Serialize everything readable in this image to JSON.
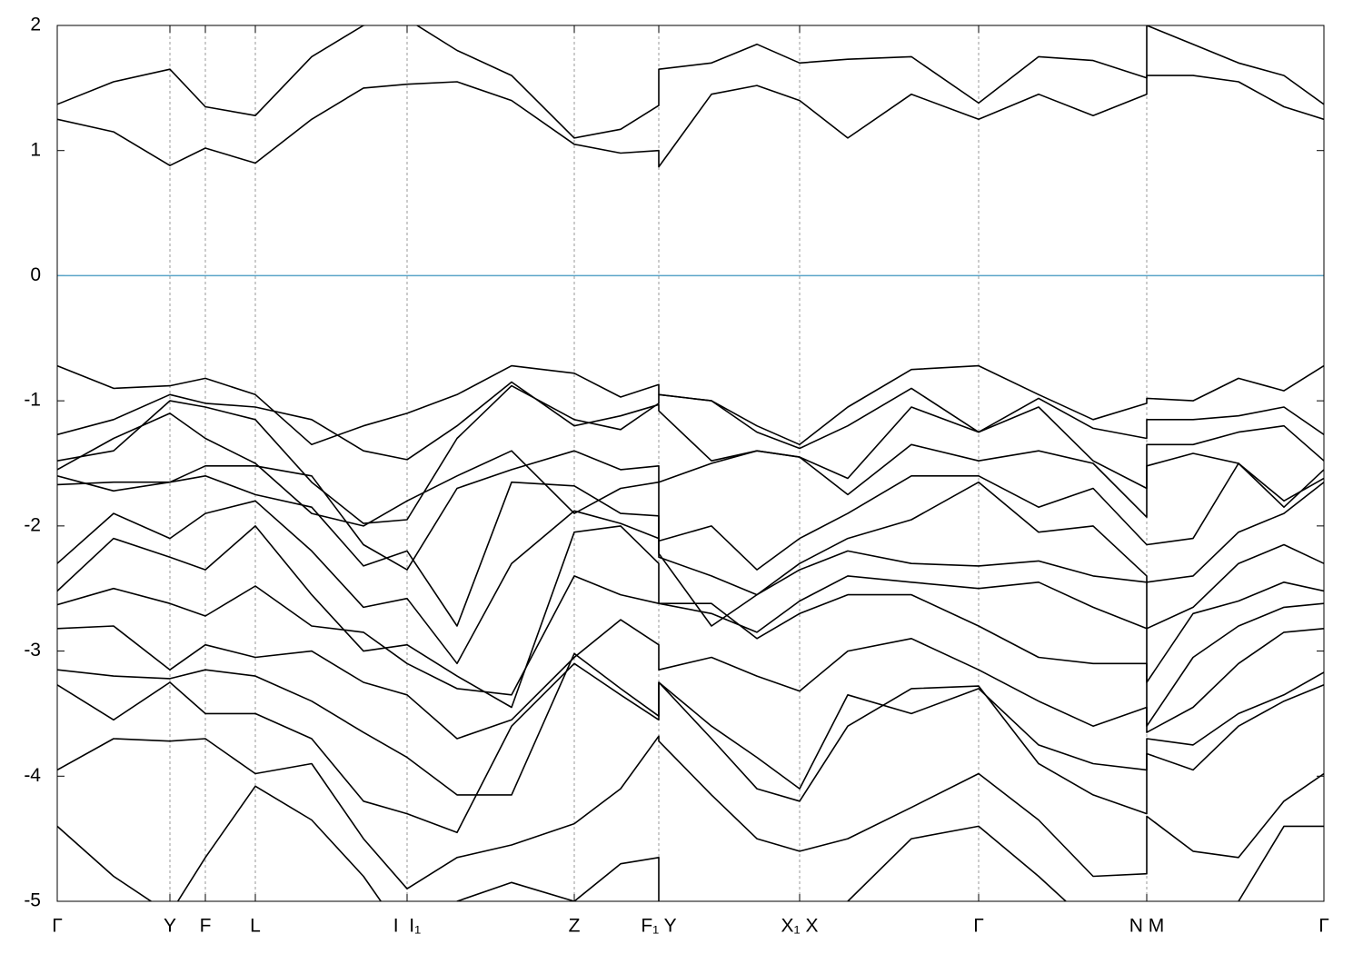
{
  "chart_data": {
    "type": "line",
    "x": [
      0,
      0.62,
      1.24,
      1.63,
      2.18,
      2.8,
      3.37,
      3.85,
      4.4,
      5.0,
      5.69,
      6.2,
      6.62,
      6.62,
      7.2,
      7.7,
      8.17,
      8.7,
      9.4,
      10.14,
      10.8,
      11.4,
      11.99,
      11.99,
      12.5,
      13.0,
      13.5,
      13.94
    ],
    "xlim": [
      0,
      13.94
    ],
    "xticks": [
      {
        "value": 0,
        "label": "Γ"
      },
      {
        "value": 1.24,
        "label": "Y"
      },
      {
        "value": 1.63,
        "label": "F"
      },
      {
        "value": 2.18,
        "label": "L"
      },
      {
        "value": 3.85,
        "label": "I  I₁"
      },
      {
        "value": 5.69,
        "label": "Z"
      },
      {
        "value": 6.62,
        "label": "F₁ Y"
      },
      {
        "value": 8.17,
        "label": "X₁ X"
      },
      {
        "value": 10.14,
        "label": "Γ"
      },
      {
        "value": 11.99,
        "label": "N M"
      },
      {
        "value": 13.94,
        "label": "Γ"
      }
    ],
    "ylim": [
      -5,
      2
    ],
    "yticks": [
      -5,
      -4,
      -3,
      -2,
      -1,
      0,
      1,
      2
    ],
    "xgrid": true,
    "color": "#000000",
    "reference_line": {
      "value": 0,
      "color": "#5aa5c8"
    },
    "series": [
      {
        "values": [
          1.37,
          1.55,
          1.65,
          1.35,
          1.28,
          1.75,
          2.0,
          2.05,
          1.8,
          1.6,
          1.1,
          1.17,
          1.36,
          1.65,
          1.7,
          1.85,
          1.7,
          1.73,
          1.75,
          1.38,
          1.75,
          1.72,
          1.58,
          2.0,
          1.85,
          1.7,
          1.6,
          1.37
        ]
      },
      {
        "values": [
          1.25,
          1.15,
          0.88,
          1.02,
          0.9,
          1.25,
          1.5,
          1.53,
          1.55,
          1.4,
          1.05,
          0.98,
          1.0,
          0.87,
          1.45,
          1.52,
          1.4,
          1.1,
          1.45,
          1.25,
          1.45,
          1.28,
          1.45,
          1.6,
          1.6,
          1.55,
          1.35,
          1.25
        ]
      },
      {
        "values": [
          -0.72,
          -0.9,
          -0.88,
          -0.82,
          -0.95,
          -1.35,
          -1.2,
          -1.1,
          -0.95,
          -0.72,
          -0.78,
          -0.97,
          -0.87,
          -0.95,
          -1.0,
          -1.2,
          -1.35,
          -1.05,
          -0.75,
          -0.72,
          -0.95,
          -1.15,
          -1.02,
          -0.98,
          -1.0,
          -0.82,
          -0.92,
          -0.72
        ]
      },
      {
        "values": [
          -1.27,
          -1.15,
          -0.95,
          -1.02,
          -1.05,
          -1.15,
          -1.4,
          -1.47,
          -1.2,
          -0.85,
          -1.2,
          -1.12,
          -1.03,
          -1.08,
          -1.48,
          -1.4,
          -1.45,
          -1.62,
          -1.05,
          -1.25,
          -0.98,
          -1.22,
          -1.3,
          -1.15,
          -1.15,
          -1.12,
          -1.05,
          -1.27
        ]
      },
      {
        "values": [
          -1.48,
          -1.4,
          -1.0,
          -1.05,
          -1.15,
          -1.65,
          -1.98,
          -1.95,
          -1.3,
          -0.88,
          -1.15,
          -1.23,
          -1.02,
          -0.95,
          -1.0,
          -1.25,
          -1.38,
          -1.2,
          -0.9,
          -1.25,
          -1.05,
          -1.48,
          -1.7,
          -1.35,
          -1.35,
          -1.25,
          -1.2,
          -1.48
        ]
      },
      {
        "values": [
          -1.55,
          -1.3,
          -1.1,
          -1.3,
          -1.5,
          -1.9,
          -2.0,
          -1.8,
          -1.6,
          -1.4,
          -1.9,
          -1.7,
          -1.65,
          -1.65,
          -1.5,
          -1.4,
          -1.45,
          -1.75,
          -1.35,
          -1.48,
          -1.4,
          -1.5,
          -1.93,
          -1.52,
          -1.42,
          -1.5,
          -1.85,
          -1.55
        ]
      },
      {
        "values": [
          -1.6,
          -1.72,
          -1.65,
          -1.52,
          -1.52,
          -1.6,
          -2.15,
          -2.35,
          -1.7,
          -1.55,
          -1.4,
          -1.55,
          -1.52,
          -2.12,
          -2.0,
          -2.35,
          -2.1,
          -1.9,
          -1.6,
          -1.6,
          -1.85,
          -1.7,
          -2.15,
          -2.15,
          -2.1,
          -1.5,
          -1.8,
          -1.62
        ]
      },
      {
        "values": [
          -1.67,
          -1.65,
          -1.65,
          -1.6,
          -1.75,
          -1.85,
          -2.32,
          -2.2,
          -2.8,
          -1.65,
          -1.68,
          -1.9,
          -1.92,
          -2.22,
          -2.8,
          -2.55,
          -2.3,
          -2.1,
          -1.95,
          -1.65,
          -2.05,
          -2.0,
          -2.4,
          -2.45,
          -2.4,
          -2.05,
          -1.9,
          -1.65
        ]
      },
      {
        "values": [
          -2.3,
          -1.9,
          -2.1,
          -1.9,
          -1.8,
          -2.2,
          -2.65,
          -2.58,
          -3.1,
          -2.3,
          -1.88,
          -1.98,
          -2.1,
          -2.25,
          -2.4,
          -2.55,
          -2.35,
          -2.2,
          -2.3,
          -2.32,
          -2.28,
          -2.4,
          -2.45,
          -2.82,
          -2.65,
          -2.3,
          -2.15,
          -2.3
        ]
      },
      {
        "values": [
          -2.52,
          -2.1,
          -2.25,
          -2.35,
          -2.0,
          -2.55,
          -3.0,
          -2.95,
          -3.2,
          -3.45,
          -2.05,
          -2.0,
          -2.3,
          -2.62,
          -2.7,
          -2.85,
          -2.6,
          -2.4,
          -2.45,
          -2.5,
          -2.45,
          -2.65,
          -2.82,
          -3.25,
          -2.7,
          -2.6,
          -2.45,
          -2.52
        ]
      },
      {
        "values": [
          -2.63,
          -2.5,
          -2.62,
          -2.72,
          -2.48,
          -2.8,
          -2.85,
          -3.1,
          -3.3,
          -3.35,
          -2.4,
          -2.55,
          -2.62,
          -2.62,
          -2.62,
          -2.9,
          -2.7,
          -2.55,
          -2.55,
          -2.8,
          -3.05,
          -3.1,
          -3.1,
          -3.6,
          -3.05,
          -2.8,
          -2.65,
          -2.62
        ]
      },
      {
        "values": [
          -2.82,
          -2.8,
          -3.15,
          -2.95,
          -3.05,
          -3.0,
          -3.25,
          -3.35,
          -3.7,
          -3.55,
          -3.05,
          -2.75,
          -2.95,
          -3.15,
          -3.05,
          -3.2,
          -3.32,
          -3.0,
          -2.9,
          -3.15,
          -3.4,
          -3.6,
          -3.45,
          -3.65,
          -3.45,
          -3.1,
          -2.85,
          -2.82
        ]
      },
      {
        "values": [
          -3.15,
          -3.2,
          -3.22,
          -3.15,
          -3.2,
          -3.4,
          -3.65,
          -3.85,
          -4.15,
          -4.15,
          -3.02,
          -3.3,
          -3.52,
          -3.25,
          -3.6,
          -3.85,
          -4.1,
          -3.35,
          -3.5,
          -3.3,
          -3.75,
          -3.9,
          -3.95,
          -3.7,
          -3.75,
          -3.5,
          -3.35,
          -3.17
        ]
      },
      {
        "values": [
          -3.27,
          -3.55,
          -3.25,
          -3.5,
          -3.5,
          -3.7,
          -4.2,
          -4.3,
          -4.45,
          -3.6,
          -3.1,
          -3.35,
          -3.55,
          -3.25,
          -3.7,
          -4.1,
          -4.2,
          -3.6,
          -3.3,
          -3.28,
          -3.9,
          -4.15,
          -4.3,
          -3.82,
          -3.95,
          -3.6,
          -3.4,
          -3.27
        ]
      },
      {
        "values": [
          -3.95,
          -3.7,
          -3.72,
          -3.7,
          -3.98,
          -3.9,
          -4.5,
          -4.9,
          -4.65,
          -4.55,
          -4.38,
          -4.1,
          -3.68,
          -3.72,
          -4.15,
          -4.5,
          -4.6,
          -4.5,
          -4.25,
          -3.98,
          -4.35,
          -4.8,
          -4.78,
          -4.32,
          -4.6,
          -4.65,
          -4.2,
          -3.98
        ]
      },
      {
        "values": [
          -4.4,
          -4.8,
          -5.1,
          -4.65,
          -4.08,
          -4.35,
          -4.8,
          -5.3,
          -5.0,
          -4.85,
          -5.0,
          -4.7,
          -4.65,
          -5.0,
          -5.2,
          -5.2,
          -5.2,
          -5.0,
          -4.5,
          -4.4,
          -4.8,
          -5.2,
          -5.3,
          -5.2,
          -5.3,
          -5.0,
          -4.4,
          -4.4
        ]
      }
    ]
  }
}
